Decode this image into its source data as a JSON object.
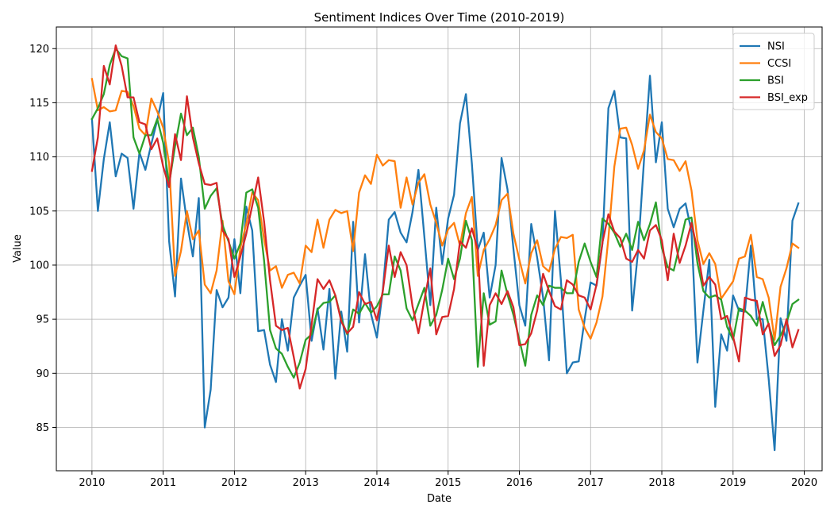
{
  "chart_data": {
    "type": "line",
    "title": "Sentiment Indices Over Time (2010-2019)",
    "xlabel": "Date",
    "ylabel": "Value",
    "x_start": "2010-01",
    "x_frequency": "monthly",
    "xticks": [
      "2010",
      "2011",
      "2012",
      "2013",
      "2014",
      "2015",
      "2016",
      "2017",
      "2018",
      "2019",
      "2020"
    ],
    "yticks": [
      "85",
      "90",
      "95",
      "100",
      "105",
      "110",
      "115",
      "120"
    ],
    "ylim": [
      81.0,
      122.0
    ],
    "xlim": [
      "2009-07",
      "2020-04"
    ],
    "grid": true,
    "legend_position": "top-right",
    "series": [
      {
        "name": "NSI",
        "color": "#1f77b4",
        "values": [
          113.5,
          105.0,
          109.8,
          113.2,
          108.2,
          110.3,
          109.9,
          105.2,
          110.4,
          108.8,
          111.2,
          113.4,
          115.9,
          102.2,
          97.1,
          108.0,
          104.0,
          100.8,
          106.2,
          85.0,
          88.5,
          97.7,
          96.1,
          97.0,
          102.4,
          97.4,
          105.4,
          103.2,
          93.9,
          94.0,
          90.8,
          89.2,
          95.0,
          92.1,
          97.0,
          98.1,
          99.1,
          93.0,
          96.0,
          92.2,
          97.8,
          89.5,
          95.7,
          92.0,
          104.0,
          94.7,
          101.0,
          95.5,
          93.3,
          97.7,
          104.2,
          104.9,
          103.0,
          102.1,
          104.9,
          108.8,
          102.6,
          96.3,
          105.3,
          100.1,
          104.3,
          106.5,
          113.1,
          115.8,
          109.4,
          101.4,
          103.0,
          97.0,
          100.0,
          109.9,
          107.0,
          101.5,
          96.3,
          94.4,
          103.8,
          100.7,
          97.0,
          91.2,
          105.0,
          98.6,
          90.0,
          91.0,
          91.1,
          95.0,
          98.4,
          98.1,
          102.0,
          114.5,
          116.1,
          111.8,
          111.7,
          95.8,
          101.3,
          109.7,
          117.5,
          109.5,
          113.2,
          105.2,
          103.5,
          105.2,
          105.7,
          103.1,
          91.0,
          95.8,
          100.5,
          86.9,
          93.6,
          92.1,
          97.2,
          95.8,
          95.7,
          101.8,
          95.0,
          95.0,
          89.5,
          82.9,
          95.1,
          93.0,
          104.1,
          105.7
        ]
      },
      {
        "name": "CCSI",
        "color": "#ff7f0e",
        "values": [
          117.2,
          114.3,
          114.6,
          114.2,
          114.3,
          116.1,
          116.0,
          114.7,
          112.6,
          112.0,
          115.4,
          114.2,
          112.7,
          109.4,
          99.0,
          101.3,
          105.0,
          102.4,
          103.2,
          98.2,
          97.4,
          99.5,
          104.1,
          98.5,
          97.3,
          101.6,
          103.8,
          106.7,
          106.0,
          102.4,
          99.5,
          99.9,
          97.9,
          99.1,
          99.3,
          98.3,
          101.8,
          101.2,
          104.2,
          101.6,
          104.2,
          105.1,
          104.8,
          105.0,
          101.3,
          106.7,
          108.3,
          107.5,
          110.2,
          109.2,
          109.7,
          109.6,
          105.3,
          108.1,
          105.6,
          107.6,
          108.4,
          105.6,
          103.9,
          101.8,
          103.3,
          103.9,
          101.8,
          104.8,
          106.3,
          99.0,
          101.4,
          102.4,
          103.7,
          106.0,
          106.6,
          102.9,
          100.5,
          98.3,
          101.1,
          102.3,
          99.9,
          99.4,
          101.5,
          102.6,
          102.5,
          102.8,
          95.9,
          94.2,
          93.2,
          94.7,
          97.1,
          102.5,
          109.1,
          112.6,
          112.7,
          111.1,
          108.9,
          110.6,
          113.9,
          112.3,
          111.7,
          109.8,
          109.7,
          108.7,
          109.6,
          106.9,
          102.3,
          100.1,
          101.1,
          100.1,
          96.9,
          97.7,
          98.5,
          100.6,
          100.8,
          102.8,
          98.9,
          98.7,
          97.0,
          93.1,
          98.0,
          99.7,
          102.0,
          101.6
        ]
      },
      {
        "name": "BSI",
        "color": "#2ca02c",
        "values": [
          113.5,
          114.5,
          115.8,
          118.5,
          120.0,
          119.3,
          119.1,
          111.8,
          110.3,
          112.0,
          112.0,
          113.5,
          111.3,
          107.5,
          111.0,
          114.0,
          112.0,
          112.7,
          110.0,
          105.2,
          106.4,
          107.1,
          103.7,
          102.2,
          100.6,
          102.0,
          106.7,
          107.0,
          105.3,
          100.4,
          94.0,
          92.3,
          91.8,
          90.6,
          89.6,
          91.0,
          93.1,
          93.6,
          95.9,
          96.5,
          96.6,
          97.2,
          95.0,
          93.6,
          95.9,
          95.5,
          96.5,
          95.6,
          96.2,
          97.3,
          97.3,
          100.8,
          99.5,
          96.0,
          94.9,
          96.4,
          97.9,
          94.4,
          95.4,
          97.7,
          100.6,
          98.7,
          100.6,
          104.1,
          102.3,
          90.6,
          97.4,
          94.5,
          94.8,
          99.5,
          97.3,
          95.4,
          93.1,
          90.7,
          95.4,
          97.2,
          96.3,
          98.1,
          97.9,
          97.9,
          97.4,
          97.4,
          100.3,
          102.0,
          100.3,
          98.9,
          104.3,
          103.8,
          103.0,
          101.7,
          102.9,
          101.4,
          104.0,
          102.3,
          103.8,
          105.8,
          101.6,
          99.8,
          99.5,
          101.8,
          104.2,
          104.4,
          100.2,
          97.6,
          97.0,
          97.2,
          96.8,
          94.3,
          93.1,
          96.0,
          95.8,
          95.3,
          94.4,
          96.6,
          94.5,
          92.6,
          93.5,
          94.7,
          96.4,
          96.8
        ]
      },
      {
        "name": "BSI_exp",
        "color": "#d62728",
        "values": [
          108.7,
          111.8,
          118.4,
          116.7,
          120.3,
          118.4,
          115.5,
          115.5,
          113.2,
          113.0,
          110.7,
          111.7,
          109.1,
          107.2,
          112.1,
          109.7,
          115.6,
          111.8,
          109.4,
          107.5,
          107.4,
          107.6,
          103.2,
          102.4,
          98.9,
          100.8,
          102.9,
          105.5,
          108.1,
          104.0,
          98.6,
          94.4,
          94.0,
          94.2,
          91.5,
          88.6,
          90.4,
          94.5,
          98.7,
          97.8,
          98.6,
          97.2,
          94.8,
          93.7,
          94.3,
          97.5,
          96.4,
          96.6,
          94.9,
          97.6,
          101.8,
          98.9,
          101.2,
          100.0,
          96.2,
          93.7,
          96.8,
          99.7,
          93.6,
          95.2,
          95.3,
          97.8,
          102.2,
          101.6,
          103.4,
          101.4,
          90.7,
          96.3,
          97.4,
          96.4,
          97.6,
          96.1,
          92.6,
          92.7,
          93.7,
          95.8,
          99.2,
          97.6,
          96.2,
          95.9,
          98.6,
          98.2,
          97.2,
          97.0,
          95.9,
          98.2,
          102.1,
          104.7,
          103.1,
          102.5,
          100.6,
          100.3,
          101.4,
          100.6,
          103.2,
          103.7,
          102.3,
          98.6,
          102.9,
          100.2,
          101.8,
          103.9,
          101.4,
          98.1,
          98.9,
          98.2,
          95.0,
          95.3,
          93.4,
          91.1,
          97.0,
          96.8,
          96.7,
          93.6,
          94.6,
          91.6,
          92.6,
          95.0,
          92.4,
          94.0
        ]
      }
    ]
  }
}
